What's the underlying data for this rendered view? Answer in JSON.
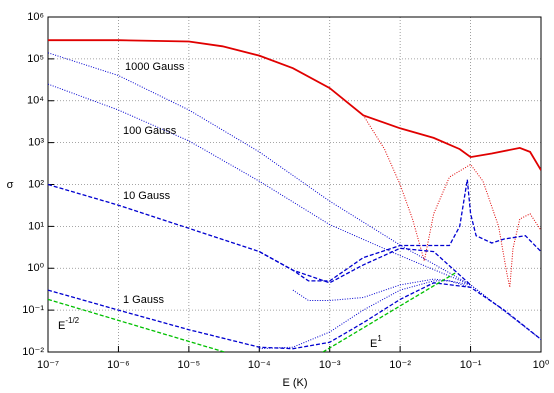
{
  "chart_data": {
    "type": "line",
    "xlabel": "E (K)",
    "ylabel": "σ",
    "xscale": "log",
    "yscale": "log",
    "grid": true,
    "xlim": [
      1e-07,
      1
    ],
    "ylim": [
      0.01,
      1000000
    ],
    "xticks": [
      {
        "value": 1e-07,
        "label": "10⁻⁷"
      },
      {
        "value": 1e-06,
        "label": "10⁻⁶"
      },
      {
        "value": 1e-05,
        "label": "10⁻⁵"
      },
      {
        "value": 0.0001,
        "label": "10⁻⁴"
      },
      {
        "value": 0.001,
        "label": "10⁻³"
      },
      {
        "value": 0.01,
        "label": "10⁻²"
      },
      {
        "value": 0.1,
        "label": "10⁻¹"
      },
      {
        "value": 1,
        "label": "10⁰"
      }
    ],
    "yticks": [
      {
        "value": 0.01,
        "label": "10⁻²"
      },
      {
        "value": 0.1,
        "label": "10⁻¹"
      },
      {
        "value": 1,
        "label": "10⁰"
      },
      {
        "value": 10,
        "label": "10¹"
      },
      {
        "value": 100,
        "label": "10²"
      },
      {
        "value": 1000,
        "label": "10³"
      },
      {
        "value": 10000,
        "label": "10⁴"
      },
      {
        "value": 100000,
        "label": "10⁵"
      },
      {
        "value": 1000000,
        "label": "10⁶"
      }
    ],
    "annotations": [
      "1000 Gauss",
      "100 Gauss",
      "10 Gauss",
      "1 Gauss",
      {
        "base": "E",
        "sup": "-1/2"
      },
      {
        "base": "E",
        "sup": "1"
      }
    ],
    "series": [
      {
        "color": "#e00000",
        "style": "solid",
        "x": [
          1e-07,
          1e-06,
          1e-05,
          3e-05,
          0.0001,
          0.0003,
          0.001,
          0.003,
          0.01,
          0.03,
          0.07,
          0.1,
          0.2,
          0.5,
          0.7,
          1
        ],
        "values": [
          280000,
          280000,
          260000,
          200000,
          120000,
          60000,
          20000,
          4500,
          2200,
          1300,
          700,
          450,
          550,
          750,
          600,
          220
        ]
      },
      {
        "color": "#e00000",
        "style": "dotted",
        "x": [
          0.003,
          0.006,
          0.01,
          0.015,
          0.022,
          0.03,
          0.05,
          0.1,
          0.15,
          0.25,
          0.33,
          0.36,
          0.4,
          0.5,
          0.7,
          1
        ],
        "values": [
          4500,
          700,
          100,
          15,
          1.5,
          20,
          150,
          300,
          120,
          10,
          0.7,
          0.35,
          3,
          15,
          20,
          8
        ]
      },
      {
        "color": "#0000d0",
        "style": "dotted",
        "x": [
          1e-07,
          1e-06,
          1e-05,
          0.0001,
          0.001,
          0.01,
          0.1,
          1
        ],
        "values": [
          140000,
          40000,
          6000,
          600,
          40,
          3.6,
          0.4,
          0.02
        ]
      },
      {
        "color": "#0000d0",
        "style": "dotted",
        "x": [
          1e-07,
          1e-06,
          1e-05,
          0.0001,
          0.001,
          0.01,
          0.1,
          1
        ],
        "values": [
          25000,
          6000,
          1100,
          120,
          11,
          2,
          0.4,
          0.02
        ]
      },
      {
        "color": "#0000d0",
        "style": "dashed",
        "x": [
          1e-07,
          1e-06,
          1e-05,
          0.0001,
          0.0003,
          0.0005,
          0.001,
          0.003,
          0.01,
          0.05,
          0.07,
          0.09,
          0.1,
          0.12,
          0.2,
          0.3,
          0.6,
          1
        ],
        "values": [
          100,
          32,
          9,
          2.5,
          0.9,
          0.5,
          0.5,
          1.8,
          3.5,
          3.5,
          10,
          130,
          20,
          6,
          4,
          5,
          6,
          2.5
        ]
      },
      {
        "color": "#0000d0",
        "style": "dashed",
        "x": [
          0.0001,
          0.0003,
          0.001,
          0.003,
          0.01,
          0.03,
          0.1
        ],
        "values": [
          2.5,
          0.9,
          0.45,
          1.2,
          3,
          2.5,
          0.4
        ]
      },
      {
        "color": "#0000d0",
        "style": "dotted",
        "x": [
          0.0003,
          0.0005,
          0.001,
          0.003,
          0.01,
          0.03,
          0.05,
          0.1
        ],
        "values": [
          0.3,
          0.17,
          0.17,
          0.2,
          0.4,
          0.55,
          0.5,
          0.4
        ]
      },
      {
        "color": "#0000d0",
        "style": "dashed",
        "x": [
          1e-07,
          1e-06,
          1e-05,
          0.0001,
          0.0003,
          0.001,
          0.003,
          0.01,
          0.03,
          0.1,
          0.3,
          1
        ],
        "values": [
          0.3,
          0.1,
          0.034,
          0.013,
          0.012,
          0.017,
          0.05,
          0.18,
          0.45,
          0.35,
          0.1,
          0.02
        ]
      },
      {
        "color": "#0000d0",
        "style": "dotted",
        "x": [
          0.0001,
          0.0003,
          0.001,
          0.003,
          0.01,
          0.03,
          0.05,
          0.1
        ],
        "values": [
          0.012,
          0.013,
          0.03,
          0.1,
          0.3,
          0.5,
          0.5,
          0.35
        ]
      },
      {
        "color": "#00c000",
        "style": "dashed",
        "x": [
          1e-07,
          3.2e-05
        ],
        "values": [
          0.18,
          0.01
        ]
      },
      {
        "color": "#00c000",
        "style": "dashed",
        "x": [
          0.0008,
          0.063
        ],
        "values": [
          0.01,
          0.8
        ]
      }
    ]
  }
}
